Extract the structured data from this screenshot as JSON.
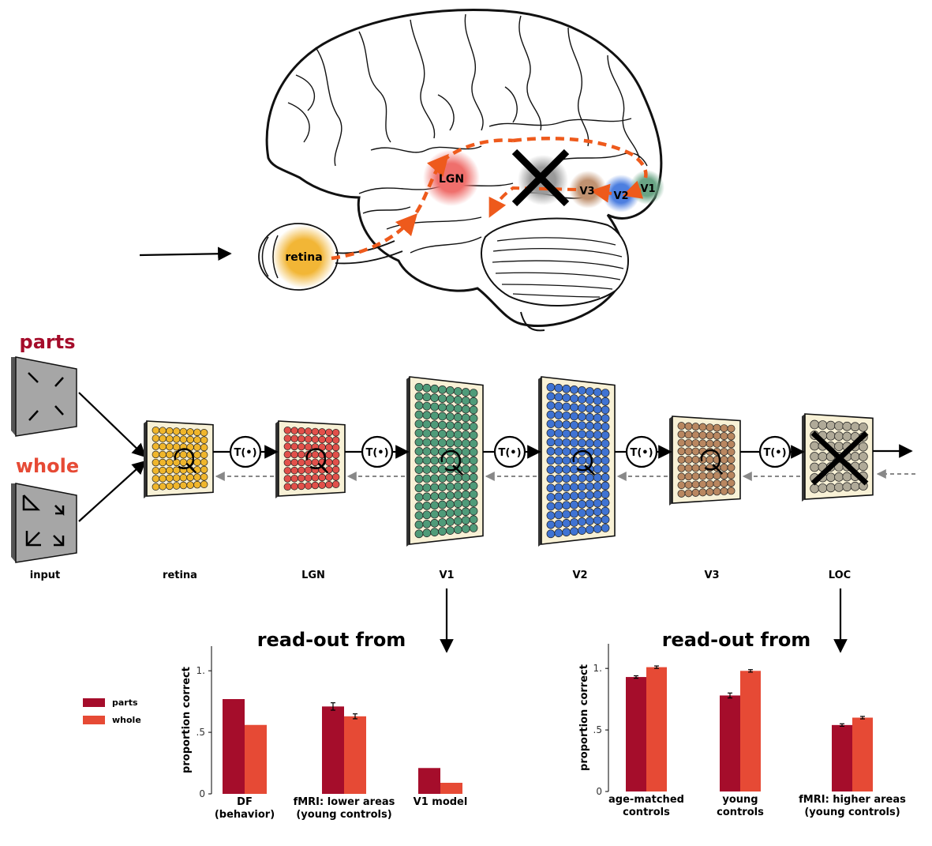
{
  "brain": {
    "regions": {
      "retina": "retina",
      "lgn": "LGN",
      "v1": "V1",
      "v2": "V2",
      "v3": "V3"
    }
  },
  "inputs": {
    "parts_label": "parts",
    "whole_label": "whole",
    "parts_color": "#a50d2b",
    "whole_color": "#e64a35"
  },
  "pipeline": {
    "transform_label": "T(•)",
    "stages": [
      {
        "label": "input"
      },
      {
        "label": "retina",
        "dot_color": "#f0b62b"
      },
      {
        "label": "LGN",
        "dot_color": "#e2504a"
      },
      {
        "label": "V1",
        "dot_color": "#4f9b79"
      },
      {
        "label": "V2",
        "dot_color": "#3f73d3"
      },
      {
        "label": "V3",
        "dot_color": "#b98760"
      },
      {
        "label": "LOC",
        "dot_color": "#b0aa98"
      }
    ]
  },
  "legend": {
    "parts": "parts",
    "whole": "whole"
  },
  "chart_data": [
    {
      "type": "bar",
      "title": "read-out from",
      "ylabel": "proportion correct",
      "ylim": [
        0,
        1.2
      ],
      "yticks": [
        "0",
        ".5",
        "1."
      ],
      "categories": [
        "DF\n(behavior)",
        "fMRI: lower areas\n(young controls)",
        "V1 model"
      ],
      "series": [
        {
          "name": "parts",
          "values": [
            0.77,
            0.71,
            0.21
          ],
          "errors": [
            0,
            0.03,
            0
          ]
        },
        {
          "name": "whole",
          "values": [
            0.56,
            0.63,
            0.09
          ],
          "errors": [
            0,
            0.02,
            0
          ]
        }
      ]
    },
    {
      "type": "bar",
      "title": "read-out from",
      "ylabel": "proportion correct",
      "ylim": [
        0,
        1.2
      ],
      "yticks": [
        "0",
        ".5",
        "1."
      ],
      "categories": [
        "age-matched\ncontrols",
        "young\ncontrols",
        "fMRI: higher areas\n(young controls)"
      ],
      "series": [
        {
          "name": "parts",
          "values": [
            0.93,
            0.78,
            0.54
          ],
          "errors": [
            0.01,
            0.02,
            0.01
          ]
        },
        {
          "name": "whole",
          "values": [
            1.01,
            0.98,
            0.6
          ],
          "errors": [
            0.01,
            0.01,
            0.01
          ]
        }
      ]
    }
  ]
}
